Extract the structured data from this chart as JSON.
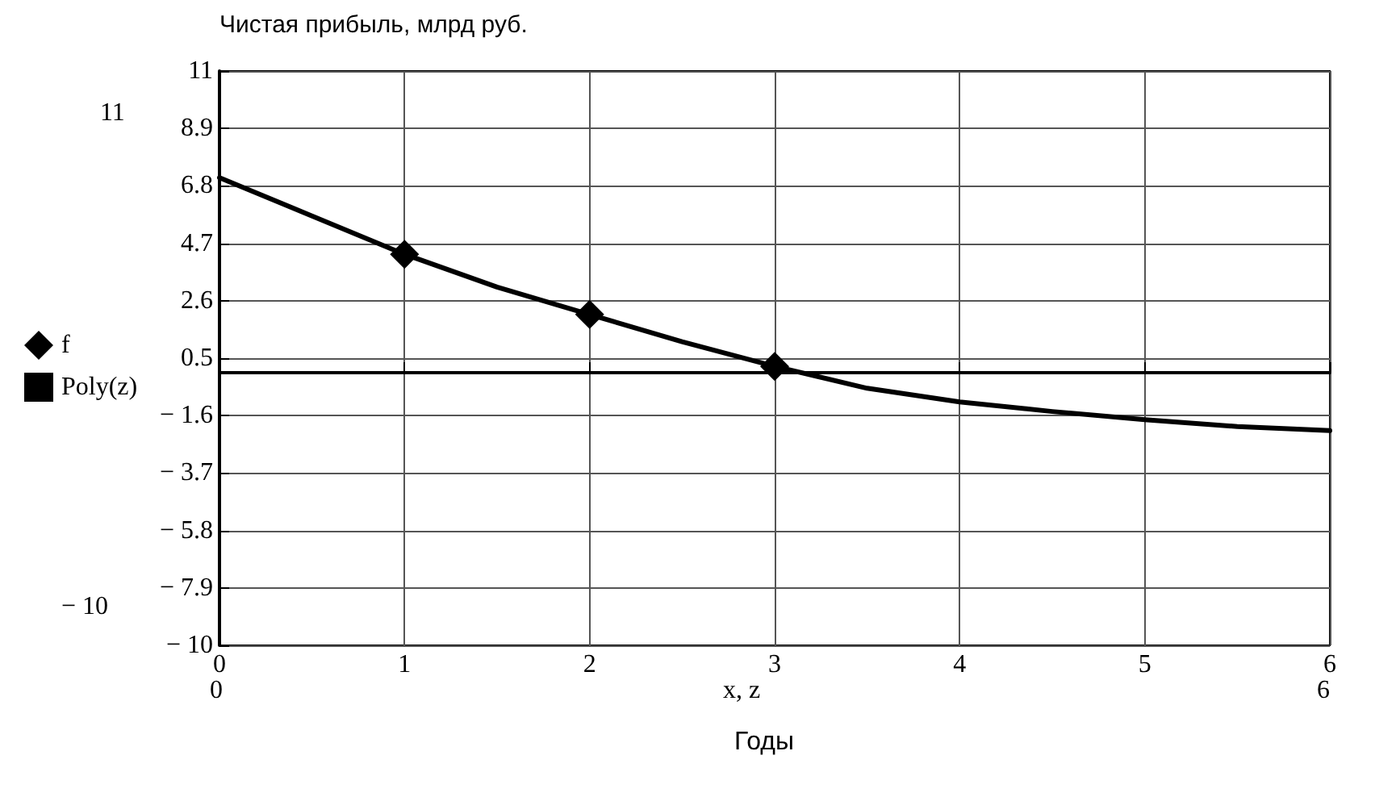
{
  "chart_data": {
    "type": "line",
    "title": "Чистая прибыль, млрд руб.",
    "xlabel": "x, z",
    "annotations": [
      "11",
      "− 10",
      "0",
      "6",
      "Годы"
    ],
    "series": [
      {
        "name": "f",
        "type": "scatter",
        "marker": "diamond",
        "color": "#000000",
        "x": [
          1,
          2,
          3
        ],
        "values": [
          4.3,
          2.1,
          0.2
        ]
      },
      {
        "name": "Poly(z)",
        "type": "line",
        "marker": "none",
        "line_style": "solid",
        "color": "#000000",
        "x": [
          0,
          0.5,
          1,
          1.5,
          2,
          2.5,
          3,
          3.5,
          4,
          4.5,
          5,
          5.5,
          6
        ],
        "values": [
          7.1,
          5.7,
          4.3,
          3.1,
          2.1,
          1.1,
          0.2,
          -0.6,
          -1.1,
          -1.45,
          -1.75,
          -2.0,
          -2.15
        ]
      }
    ],
    "xlim": [
      0,
      6
    ],
    "xticks": [
      0,
      1,
      2,
      3,
      4,
      5,
      6
    ],
    "ylim": [
      -10,
      11
    ],
    "yticks": [
      -10,
      -7.9,
      -5.8,
      -3.7,
      -1.6,
      0.5,
      2.6,
      4.7,
      6.8,
      8.9,
      11
    ],
    "grid": true,
    "legend": "left"
  }
}
